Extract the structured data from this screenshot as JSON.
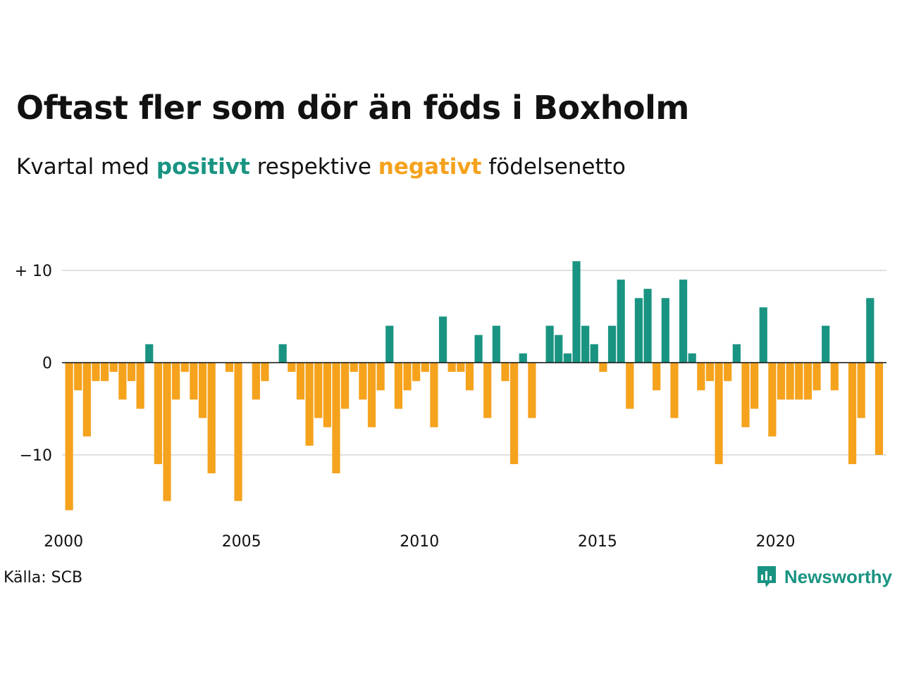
{
  "title": "Oftast fler som dör än föds i Boxholm",
  "subtitle": {
    "before": "Kvartal med ",
    "positive_word": "positivt",
    "middle": " respektive ",
    "negative_word": "negativt",
    "after": " födelsenetto"
  },
  "colors": {
    "positive": "#1a9482",
    "negative": "#f5a21d",
    "grid": "#e1e1e1",
    "text": "#111111"
  },
  "source": "Källa: SCB",
  "brand": {
    "name": "Newsworthy",
    "icon": "newsworthy-logo-icon"
  },
  "chart_data": {
    "type": "bar",
    "title": "Oftast fler som dör än föds i Boxholm",
    "subtitle": "Kvartal med positivt respektive negativt födelsenetto",
    "xlabel": "",
    "ylabel": "",
    "x_start": 2000,
    "periods_per_year": 4,
    "x_ticks": [
      "2000",
      "2005",
      "2010",
      "2015",
      "2020"
    ],
    "y_ticks": [
      {
        "value": 10,
        "label": "+ 10"
      },
      {
        "value": 0,
        "label": "0"
      },
      {
        "value": -10,
        "label": "−10"
      }
    ],
    "ylim": [
      -16,
      11
    ],
    "grid": true,
    "values": [
      -16,
      -3,
      -8,
      -2,
      -2,
      -1,
      -4,
      -2,
      -5,
      2,
      -11,
      -15,
      -4,
      -1,
      -4,
      -6,
      -12,
      0,
      -1,
      -15,
      0,
      -4,
      -2,
      0,
      2,
      -1,
      -4,
      -9,
      -6,
      -7,
      -12,
      -5,
      -1,
      -4,
      -7,
      -3,
      4,
      -5,
      -3,
      -2,
      -1,
      -7,
      5,
      -1,
      -1,
      -3,
      3,
      -6,
      4,
      -2,
      -11,
      1,
      -6,
      0,
      4,
      3,
      1,
      11,
      4,
      2,
      -1,
      4,
      9,
      -5,
      7,
      8,
      -3,
      7,
      -6,
      9,
      1,
      -3,
      -2,
      -11,
      -2,
      2,
      -7,
      -5,
      6,
      -8,
      -4,
      -4,
      -4,
      -4,
      -3,
      4,
      -3,
      0,
      -11,
      -6,
      7,
      -10
    ]
  }
}
